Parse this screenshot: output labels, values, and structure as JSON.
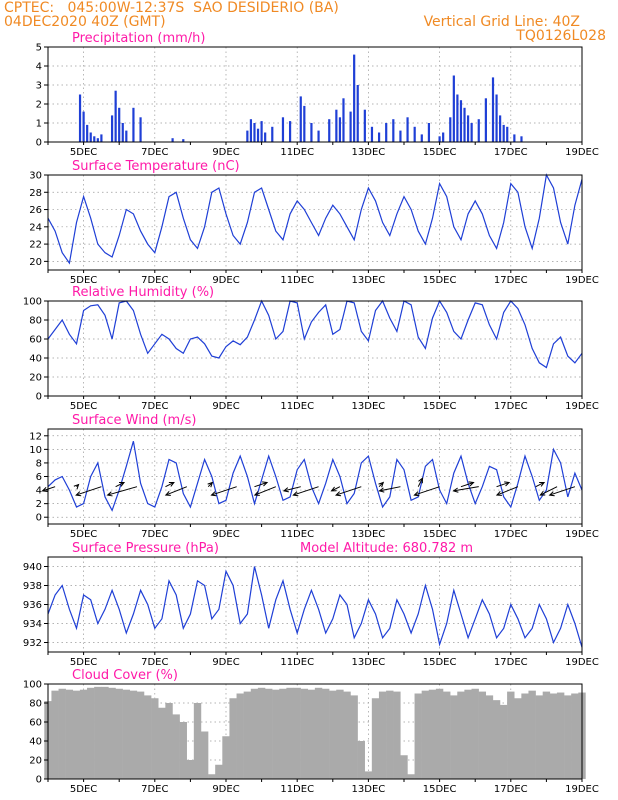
{
  "header": {
    "line1_left": "CPTEC:   045:00W-12:37S  SAO DESIDERIO (BA)",
    "line2_left": "04DEC2020 40Z (GMT)",
    "line1_right": "Vertical Grid Line: 40Z",
    "line2_right": "TQ0126L028"
  },
  "colors": {
    "header": "#f08a24",
    "title": "#ff1aa8",
    "series": "#1f3fd6",
    "cloud": "#aaaaaa"
  },
  "chart_data": [
    {
      "type": "bar",
      "title": "Precipitation (mm/h)",
      "ylim": [
        0,
        5
      ],
      "yticks": [
        0,
        1,
        2,
        3,
        4,
        5
      ],
      "xlabels": [
        "5DEC",
        "7DEC",
        "9DEC",
        "11DEC",
        "13DEC",
        "15DEC",
        "17DEC",
        "19DEC"
      ],
      "x": [
        4.9,
        5.0,
        5.1,
        5.2,
        5.3,
        5.4,
        5.5,
        5.8,
        5.9,
        6.0,
        6.1,
        6.2,
        6.4,
        6.6,
        7.5,
        7.8,
        9.6,
        9.7,
        9.8,
        9.9,
        10.0,
        10.1,
        10.3,
        10.6,
        10.8,
        11.1,
        11.2,
        11.4,
        11.6,
        11.9,
        12.1,
        12.2,
        12.3,
        12.5,
        12.6,
        12.7,
        12.9,
        13.1,
        13.3,
        13.5,
        13.7,
        13.9,
        14.1,
        14.3,
        14.5,
        14.7,
        15.0,
        15.1,
        15.3,
        15.4,
        15.5,
        15.6,
        15.7,
        15.8,
        15.9,
        16.1,
        16.3,
        16.5,
        16.6,
        16.7,
        16.8,
        16.9,
        17.1,
        17.3
      ],
      "values": [
        2.5,
        1.6,
        0.9,
        0.5,
        0.3,
        0.2,
        0.4,
        1.4,
        2.7,
        1.8,
        1.0,
        0.6,
        1.8,
        1.3,
        0.2,
        0.15,
        0.6,
        1.2,
        1.0,
        0.7,
        1.1,
        0.5,
        0.8,
        1.3,
        1.1,
        2.4,
        1.9,
        1.0,
        0.6,
        1.2,
        1.7,
        1.3,
        2.3,
        1.6,
        4.6,
        3.0,
        1.7,
        0.8,
        0.5,
        1.0,
        1.2,
        0.6,
        1.3,
        0.8,
        0.4,
        1.0,
        0.3,
        0.5,
        1.3,
        3.5,
        2.5,
        2.2,
        1.8,
        1.4,
        1.0,
        1.2,
        2.3,
        3.4,
        2.5,
        1.4,
        0.9,
        0.8,
        0.4,
        0.3
      ]
    },
    {
      "type": "line",
      "title": "Surface Temperature (nC)",
      "ylim": [
        19,
        30
      ],
      "yticks": [
        20,
        22,
        24,
        26,
        28,
        30
      ],
      "xlabels": [
        "5DEC",
        "7DEC",
        "9DEC",
        "11DEC",
        "13DEC",
        "15DEC",
        "17DEC",
        "19DEC"
      ],
      "x": [
        4.0,
        4.2,
        4.4,
        4.6,
        4.8,
        5.0,
        5.2,
        5.4,
        5.6,
        5.8,
        6.0,
        6.2,
        6.4,
        6.6,
        6.8,
        7.0,
        7.2,
        7.4,
        7.6,
        7.8,
        8.0,
        8.2,
        8.4,
        8.6,
        8.8,
        9.0,
        9.2,
        9.4,
        9.6,
        9.8,
        10.0,
        10.2,
        10.4,
        10.6,
        10.8,
        11.0,
        11.2,
        11.4,
        11.6,
        11.8,
        12.0,
        12.2,
        12.4,
        12.6,
        12.8,
        13.0,
        13.2,
        13.4,
        13.6,
        13.8,
        14.0,
        14.2,
        14.4,
        14.6,
        14.8,
        15.0,
        15.2,
        15.4,
        15.6,
        15.8,
        16.0,
        16.2,
        16.4,
        16.6,
        16.8,
        17.0,
        17.2,
        17.4,
        17.6,
        17.8,
        18.0,
        18.2,
        18.4,
        18.6,
        18.8,
        19.0
      ],
      "values": [
        25.0,
        23.5,
        21.0,
        19.8,
        24.5,
        27.5,
        25.0,
        22.0,
        21.0,
        20.5,
        23.0,
        26.0,
        25.5,
        23.5,
        22.0,
        21.0,
        24.0,
        27.5,
        28.0,
        25.0,
        22.5,
        21.5,
        24.0,
        28.0,
        28.5,
        25.5,
        23.0,
        22.0,
        24.5,
        28.0,
        28.5,
        26.0,
        23.5,
        22.5,
        25.5,
        27.0,
        26.0,
        24.5,
        23.0,
        25.0,
        26.5,
        25.5,
        24.0,
        22.5,
        26.0,
        28.5,
        27.0,
        24.5,
        23.0,
        25.5,
        27.5,
        26.0,
        23.5,
        22.0,
        25.0,
        29.0,
        27.5,
        24.0,
        22.5,
        25.5,
        27.0,
        25.5,
        23.0,
        21.5,
        24.5,
        29.0,
        28.0,
        24.0,
        21.5,
        25.0,
        30.0,
        28.5,
        24.5,
        22.0,
        26.5,
        29.5
      ]
    },
    {
      "type": "line",
      "title": "Relative Humidity (%)",
      "ylim": [
        0,
        100
      ],
      "yticks": [
        0,
        20,
        40,
        60,
        80,
        100
      ],
      "xlabels": [
        "5DEC",
        "7DEC",
        "9DEC",
        "11DEC",
        "13DEC",
        "15DEC",
        "17DEC",
        "19DEC"
      ],
      "x": [
        4.0,
        4.2,
        4.4,
        4.6,
        4.8,
        5.0,
        5.2,
        5.4,
        5.6,
        5.8,
        6.0,
        6.2,
        6.4,
        6.6,
        6.8,
        7.0,
        7.2,
        7.4,
        7.6,
        7.8,
        8.0,
        8.2,
        8.4,
        8.6,
        8.8,
        9.0,
        9.2,
        9.4,
        9.6,
        9.8,
        10.0,
        10.2,
        10.4,
        10.6,
        10.8,
        11.0,
        11.2,
        11.4,
        11.6,
        11.8,
        12.0,
        12.2,
        12.4,
        12.6,
        12.8,
        13.0,
        13.2,
        13.4,
        13.6,
        13.8,
        14.0,
        14.2,
        14.4,
        14.6,
        14.8,
        15.0,
        15.2,
        15.4,
        15.6,
        15.8,
        16.0,
        16.2,
        16.4,
        16.6,
        16.8,
        17.0,
        17.2,
        17.4,
        17.6,
        17.8,
        18.0,
        18.2,
        18.4,
        18.6,
        18.8,
        19.0
      ],
      "values": [
        60,
        70,
        80,
        65,
        55,
        90,
        95,
        96,
        85,
        60,
        98,
        100,
        90,
        65,
        45,
        55,
        65,
        60,
        50,
        45,
        60,
        62,
        55,
        42,
        40,
        52,
        58,
        54,
        62,
        80,
        100,
        85,
        60,
        68,
        100,
        98,
        60,
        78,
        88,
        96,
        65,
        70,
        100,
        98,
        68,
        58,
        90,
        100,
        82,
        68,
        100,
        96,
        62,
        50,
        82,
        100,
        88,
        68,
        60,
        80,
        98,
        96,
        75,
        60,
        88,
        100,
        92,
        75,
        50,
        35,
        30,
        55,
        62,
        42,
        35,
        45
      ]
    },
    {
      "type": "line",
      "title": "Surface Wind (m/s)",
      "ylim": [
        -1,
        13
      ],
      "yticks": [
        0,
        2,
        4,
        6,
        8,
        10,
        12
      ],
      "xlabels": [
        "5DEC",
        "7DEC",
        "9DEC",
        "11DEC",
        "13DEC",
        "15DEC",
        "17DEC",
        "19DEC"
      ],
      "x": [
        4.0,
        4.2,
        4.4,
        4.6,
        4.8,
        5.0,
        5.2,
        5.4,
        5.6,
        5.8,
        6.0,
        6.2,
        6.4,
        6.6,
        6.8,
        7.0,
        7.2,
        7.4,
        7.6,
        7.8,
        8.0,
        8.2,
        8.4,
        8.6,
        8.8,
        9.0,
        9.2,
        9.4,
        9.6,
        9.8,
        10.0,
        10.2,
        10.4,
        10.6,
        10.8,
        11.0,
        11.2,
        11.4,
        11.6,
        11.8,
        12.0,
        12.2,
        12.4,
        12.6,
        12.8,
        13.0,
        13.2,
        13.4,
        13.6,
        13.8,
        14.0,
        14.2,
        14.4,
        14.6,
        14.8,
        15.0,
        15.2,
        15.4,
        15.6,
        15.8,
        16.0,
        16.2,
        16.4,
        16.6,
        16.8,
        17.0,
        17.2,
        17.4,
        17.6,
        17.8,
        18.0,
        18.2,
        18.4,
        18.6,
        18.8,
        19.0
      ],
      "values": [
        4.5,
        5.5,
        6.0,
        4.0,
        1.5,
        2.0,
        6.0,
        8.0,
        3.0,
        1.0,
        4.0,
        7.5,
        11.2,
        5.0,
        2.0,
        1.5,
        4.5,
        8.5,
        8.0,
        3.5,
        1.5,
        5.0,
        8.5,
        6.0,
        2.0,
        2.5,
        6.5,
        9.0,
        6.0,
        2.0,
        5.5,
        9.0,
        6.0,
        2.5,
        3.0,
        7.0,
        8.5,
        4.5,
        2.0,
        5.0,
        8.5,
        6.0,
        2.0,
        3.5,
        8.0,
        9.0,
        5.0,
        1.5,
        3.0,
        8.5,
        7.0,
        2.5,
        3.0,
        7.5,
        8.5,
        4.0,
        2.0,
        6.5,
        9.0,
        5.0,
        2.0,
        4.5,
        7.5,
        7.0,
        3.0,
        1.5,
        5.0,
        9.0,
        6.0,
        2.5,
        4.0,
        10.0,
        8.0,
        3.0,
        6.5,
        4.0
      ],
      "arrows": {
        "x": [
          4.2,
          4.8,
          5.5,
          5.9,
          6.5,
          7.3,
          7.9,
          8.5,
          9.3,
          9.8,
          10.4,
          11.1,
          11.6,
          12.2,
          12.8,
          13.3,
          13.9,
          14.4,
          15.0,
          15.6,
          16.1,
          16.6,
          17.2,
          17.7,
          18.3,
          18.8
        ],
        "u": [
          -3,
          0.5,
          -6,
          2,
          -7,
          2,
          -5,
          1,
          -6,
          3,
          -5,
          -4,
          -6,
          -2,
          -6,
          1,
          -5,
          1,
          -6,
          3,
          -6,
          3,
          -5,
          2,
          -4,
          -6
        ],
        "v": [
          -1,
          0.5,
          -2,
          1,
          -2,
          1,
          -2,
          1,
          -2,
          1,
          -2,
          -1,
          -2,
          -1,
          -2,
          1,
          -1,
          2,
          -2,
          1,
          -1,
          1,
          -2,
          1,
          -2,
          -2
        ]
      }
    },
    {
      "type": "line",
      "title": "Surface Pressure (hPa)",
      "annotation": "Model Altitude: 680.782 m",
      "ylim": [
        931,
        941
      ],
      "yticks": [
        932,
        934,
        936,
        938,
        940
      ],
      "xlabels": [
        "5DEC",
        "7DEC",
        "9DEC",
        "11DEC",
        "13DEC",
        "15DEC",
        "17DEC",
        "19DEC"
      ],
      "x": [
        4.0,
        4.2,
        4.4,
        4.6,
        4.8,
        5.0,
        5.2,
        5.4,
        5.6,
        5.8,
        6.0,
        6.2,
        6.4,
        6.6,
        6.8,
        7.0,
        7.2,
        7.4,
        7.6,
        7.8,
        8.0,
        8.2,
        8.4,
        8.6,
        8.8,
        9.0,
        9.2,
        9.4,
        9.6,
        9.8,
        10.0,
        10.2,
        10.4,
        10.6,
        10.8,
        11.0,
        11.2,
        11.4,
        11.6,
        11.8,
        12.0,
        12.2,
        12.4,
        12.6,
        12.8,
        13.0,
        13.2,
        13.4,
        13.6,
        13.8,
        14.0,
        14.2,
        14.4,
        14.6,
        14.8,
        15.0,
        15.2,
        15.4,
        15.6,
        15.8,
        16.0,
        16.2,
        16.4,
        16.6,
        16.8,
        17.0,
        17.2,
        17.4,
        17.6,
        17.8,
        18.0,
        18.2,
        18.4,
        18.6,
        18.8,
        19.0
      ],
      "values": [
        935.0,
        937.0,
        938.0,
        935.5,
        933.5,
        937.0,
        936.5,
        934.0,
        935.5,
        937.5,
        935.5,
        933.0,
        935.0,
        937.5,
        936.0,
        933.5,
        934.5,
        938.5,
        937.0,
        933.5,
        935.0,
        938.5,
        938.0,
        934.5,
        935.5,
        939.5,
        938.0,
        934.0,
        935.0,
        940.0,
        937.0,
        933.5,
        936.5,
        938.5,
        935.5,
        933.0,
        935.5,
        937.5,
        935.5,
        933.0,
        934.5,
        937.0,
        936.0,
        932.5,
        934.0,
        936.5,
        935.0,
        932.5,
        933.5,
        936.5,
        935.0,
        933.0,
        935.0,
        938.0,
        935.5,
        931.8,
        934.0,
        937.5,
        935.0,
        932.5,
        934.5,
        936.5,
        935.0,
        932.5,
        933.5,
        936.0,
        934.5,
        932.5,
        933.5,
        936.0,
        934.5,
        932.0,
        933.5,
        936.0,
        934.0,
        931.5
      ]
    },
    {
      "type": "bar",
      "title": "Cloud Cover (%)",
      "ylim": [
        0,
        100
      ],
      "yticks": [
        0,
        20,
        40,
        60,
        80,
        100
      ],
      "xlabels": [
        "5DEC",
        "7DEC",
        "9DEC",
        "11DEC",
        "13DEC",
        "15DEC",
        "17DEC",
        "19DEC"
      ],
      "x": [
        4.0,
        4.2,
        4.4,
        4.6,
        4.8,
        5.0,
        5.2,
        5.4,
        5.6,
        5.8,
        6.0,
        6.2,
        6.4,
        6.6,
        6.8,
        7.0,
        7.2,
        7.4,
        7.6,
        7.8,
        8.0,
        8.2,
        8.4,
        8.6,
        8.8,
        9.0,
        9.2,
        9.4,
        9.6,
        9.8,
        10.0,
        10.2,
        10.4,
        10.6,
        10.8,
        11.0,
        11.2,
        11.4,
        11.6,
        11.8,
        12.0,
        12.2,
        12.4,
        12.6,
        12.8,
        13.0,
        13.2,
        13.4,
        13.6,
        13.8,
        14.0,
        14.2,
        14.4,
        14.6,
        14.8,
        15.0,
        15.2,
        15.4,
        15.6,
        15.8,
        16.0,
        16.2,
        16.4,
        16.6,
        16.8,
        17.0,
        17.2,
        17.4,
        17.6,
        17.8,
        18.0,
        18.2,
        18.4,
        18.6,
        18.8,
        19.0
      ],
      "values": [
        82,
        93,
        95,
        94,
        93,
        94,
        96,
        97,
        97,
        96,
        95,
        94,
        93,
        92,
        88,
        85,
        75,
        80,
        68,
        60,
        20,
        80,
        50,
        5,
        15,
        45,
        85,
        90,
        92,
        95,
        96,
        95,
        94,
        95,
        96,
        96,
        95,
        94,
        96,
        95,
        93,
        94,
        92,
        88,
        40,
        8,
        85,
        92,
        93,
        92,
        25,
        5,
        90,
        93,
        94,
        95,
        92,
        88,
        92,
        94,
        95,
        92,
        88,
        83,
        78,
        92,
        85,
        90,
        93,
        88,
        92,
        90,
        91,
        88,
        90,
        91
      ]
    }
  ]
}
